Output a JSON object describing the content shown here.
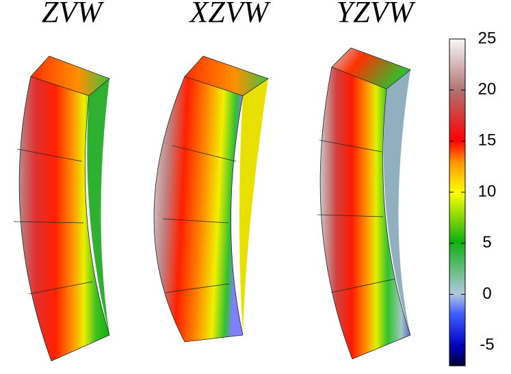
{
  "panels": [
    {
      "title": "ZVW"
    },
    {
      "title": "XZVW"
    },
    {
      "title": "YZVW"
    }
  ],
  "colorbar": {
    "range": [
      -7,
      25
    ],
    "ticks": [
      -5,
      0,
      5,
      10,
      15,
      20,
      25
    ]
  }
}
